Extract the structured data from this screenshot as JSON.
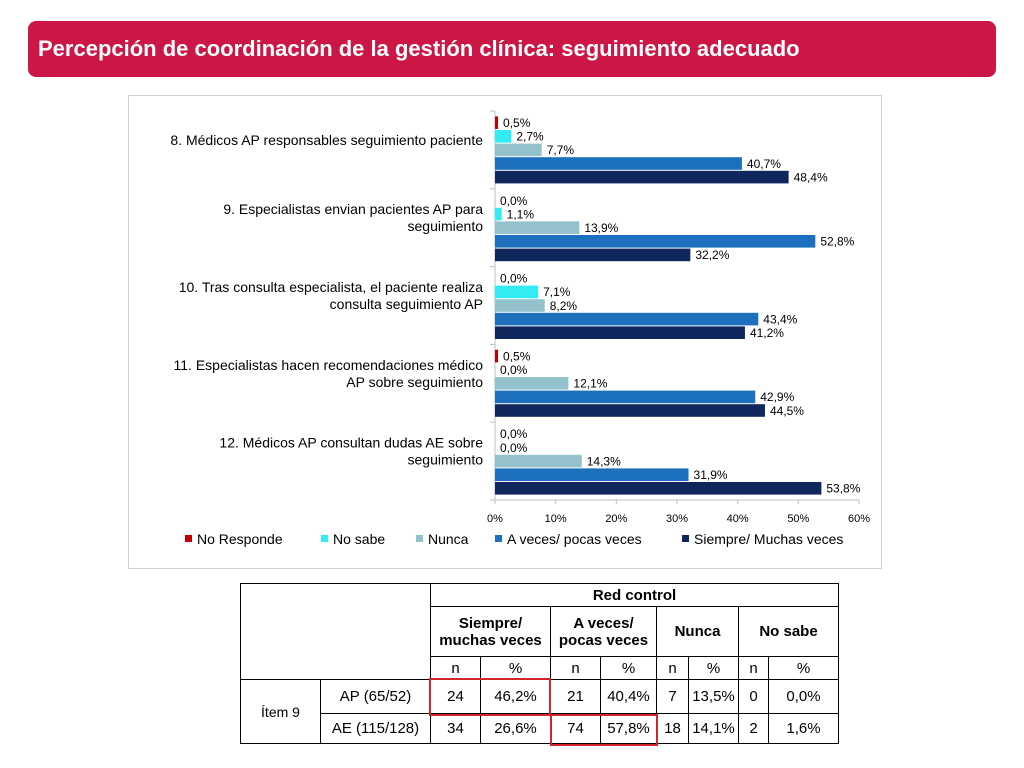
{
  "title": "Percepción de coordinación de la gestión clínica: seguimiento adecuado",
  "chart_data": {
    "type": "bar",
    "orientation": "horizontal",
    "categories": [
      [
        "8. Médicos AP responsables seguimiento paciente"
      ],
      [
        "9. Especialistas envian pacientes AP para",
        "seguimiento"
      ],
      [
        "10. Tras consulta especialista, el paciente realiza",
        "consulta seguimiento  AP"
      ],
      [
        "11. Especialistas hacen recomendaciones médico",
        "AP sobre seguimiento"
      ],
      [
        "12. Médicos AP consultan dudas AE   sobre",
        "seguimiento"
      ]
    ],
    "series": [
      {
        "name": "No Responde",
        "color": "#c00000",
        "values": [
          0.5,
          0.0,
          0.0,
          0.5,
          0.0
        ],
        "labels": [
          "0,5%",
          "0,0%",
          "0,0%",
          "0,5%",
          "0,0%"
        ]
      },
      {
        "name": "No sabe",
        "color": "#33ebf2",
        "values": [
          2.7,
          1.1,
          7.1,
          0.0,
          0.0
        ],
        "labels": [
          "2,7%",
          "1,1%",
          "7,1%",
          "0,0%",
          "0,0%"
        ]
      },
      {
        "name": "Nunca",
        "color": "#93c2cc",
        "values": [
          7.7,
          13.9,
          8.2,
          12.1,
          14.3
        ],
        "labels": [
          "7,7%",
          "13,9%",
          "8,2%",
          "12,1%",
          "14,3%"
        ]
      },
      {
        "name": "A veces/ pocas veces",
        "color": "#1c70bd",
        "values": [
          40.7,
          52.8,
          43.4,
          42.9,
          31.9
        ],
        "labels": [
          "40,7%",
          "52,8%",
          "43,4%",
          "42,9%",
          "31,9%"
        ]
      },
      {
        "name": "Siempre/ Muchas veces",
        "color": "#10275e",
        "values": [
          48.4,
          32.2,
          41.2,
          44.5,
          53.8
        ],
        "labels": [
          "48,4%",
          "32,2%",
          "41,2%",
          "44,5%",
          "53,8%"
        ]
      }
    ],
    "xlim": [
      0,
      60
    ],
    "xticks": [
      0,
      10,
      20,
      30,
      40,
      50,
      60
    ],
    "xtick_labels": [
      "0%",
      "10%",
      "20%",
      "30%",
      "40%",
      "50%",
      "60%"
    ],
    "legend_position": "bottom",
    "grid": false
  },
  "table": {
    "group_header": "Red control",
    "col_headers": [
      "Siempre/ muchas veces",
      "A veces/ pocas veces",
      "Nunca",
      "No sabe"
    ],
    "col_headers_lines": [
      [
        "Siempre/",
        "muchas veces"
      ],
      [
        "A veces/",
        "pocas veces"
      ],
      [
        "Nunca"
      ],
      [
        "No sabe"
      ]
    ],
    "sub_headers": [
      "n",
      "%",
      "n",
      "%",
      "n",
      "%",
      "n",
      "%"
    ],
    "item_label": "Ítem 9",
    "rows": [
      {
        "label": "AP (65/52)",
        "cells": [
          "24",
          "46,2%",
          "21",
          "40,4%",
          "7",
          "13,5%",
          "0",
          "0,0%"
        ]
      },
      {
        "label": "AE (115/128)",
        "cells": [
          "34",
          "26,6%",
          "74",
          "57,8%",
          "18",
          "14,1%",
          "2",
          "1,6%"
        ]
      }
    ]
  }
}
